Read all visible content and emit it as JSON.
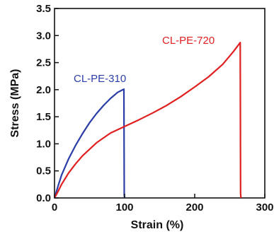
{
  "chart_data": {
    "type": "line",
    "xlabel": "Strain (%)",
    "ylabel": "Stress (MPa)",
    "xlim": [
      0,
      300
    ],
    "ylim": [
      0,
      3.5
    ],
    "xticks": [
      0,
      100,
      200,
      300
    ],
    "yticks": [
      0.0,
      0.5,
      1.0,
      1.5,
      2.0,
      2.5,
      3.0,
      3.5
    ],
    "xtick_labels": [
      "0",
      "100",
      "200",
      "300"
    ],
    "ytick_labels": [
      "0.0",
      "0.5",
      "1.0",
      "1.5",
      "2.0",
      "2.5",
      "3.0",
      "3.5"
    ],
    "grid": false,
    "series": [
      {
        "name": "CL-PE-310",
        "color": "#2b3ea8",
        "x": [
          0,
          5,
          10,
          20,
          30,
          40,
          50,
          60,
          70,
          80,
          90,
          99,
          99.5,
          100
        ],
        "y": [
          0,
          0.22,
          0.42,
          0.72,
          0.97,
          1.19,
          1.39,
          1.56,
          1.71,
          1.84,
          1.95,
          2.01,
          0.05,
          0.0
        ]
      },
      {
        "name": "CL-PE-720",
        "color": "#e02020",
        "x": [
          0,
          5,
          10,
          20,
          30,
          40,
          60,
          80,
          100,
          120,
          140,
          160,
          180,
          200,
          220,
          240,
          255,
          265,
          265.5,
          266
        ],
        "y": [
          0,
          0.12,
          0.25,
          0.46,
          0.63,
          0.78,
          1.02,
          1.2,
          1.32,
          1.44,
          1.57,
          1.71,
          1.87,
          2.05,
          2.24,
          2.47,
          2.7,
          2.87,
          0.08,
          0.0
        ]
      }
    ]
  }
}
